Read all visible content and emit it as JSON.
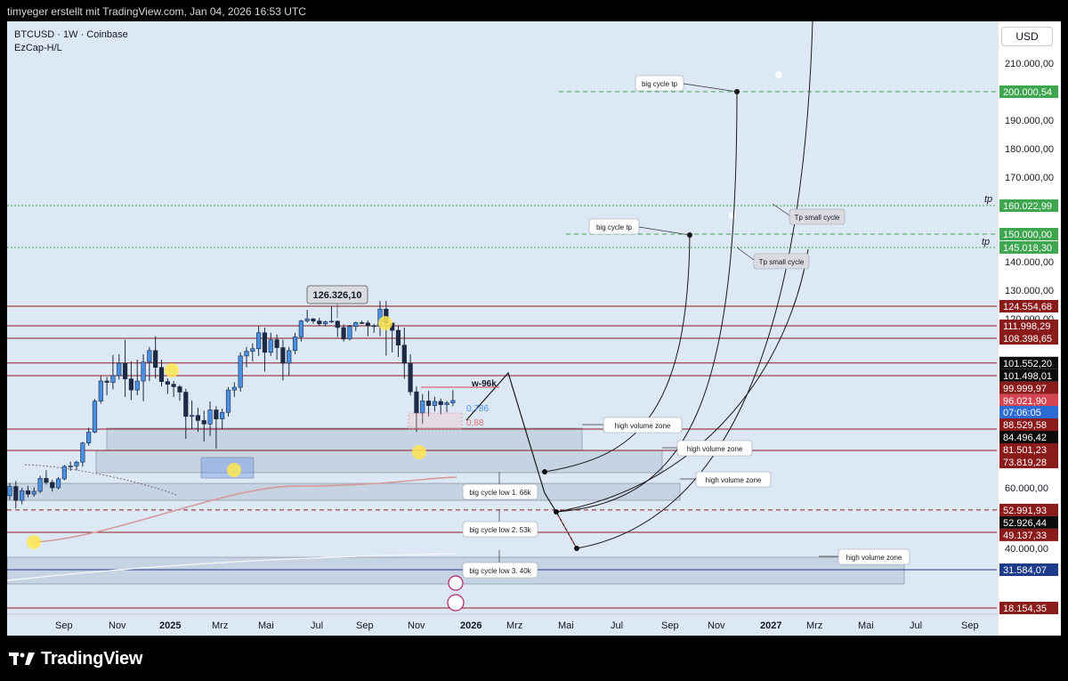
{
  "header": {
    "attribution": "timyeger erstellt mit TradingView.com, Jan 04, 2026 16:53 UTC"
  },
  "legend": {
    "symbol": "BTCUSD · 1W · Coinbase",
    "indicator": "EzCap-H/L"
  },
  "currency_button": "USD",
  "footer": {
    "brand": "TradingView"
  },
  "colors": {
    "chart_bg": "#dde8f5",
    "up": "#4a90e2",
    "down": "#1c2a44",
    "dark_red": "#8b1a1a",
    "red": "#d64552",
    "green": "#3ea64e",
    "black": "#0b0b0b",
    "blue": "#2b6cd6",
    "navy": "#1e3a8a"
  },
  "chart_data": {
    "type": "candlestick",
    "symbol": "BTCUSD",
    "interval": "1W",
    "exchange": "Coinbase",
    "ylim": [
      15000,
      218000
    ],
    "x_axis_labels": [
      "Sep",
      "Nov",
      "2025",
      "Mrz",
      "Mai",
      "Jul",
      "Sep",
      "Nov",
      "2026",
      "Mrz",
      "Mai",
      "Jul",
      "Sep",
      "Nov",
      "2027",
      "Mrz",
      "Mai",
      "Jul",
      "Sep"
    ],
    "y_axis_ticks": [
      "210.000,00",
      "200.000,00",
      "190.000,00",
      "180.000,00",
      "170.000,00",
      "160.000,00",
      "150.000,00",
      "140.000,00",
      "130.000,00",
      "120.000,00",
      "60.000,00",
      "40.000,00"
    ],
    "price_labels": [
      {
        "value": 200000.54,
        "label": "200.000,54",
        "color": "green"
      },
      {
        "value": 160022.99,
        "label": "160.022,99",
        "color": "green"
      },
      {
        "value": 150000.0,
        "label": "150.000,00",
        "color": "green"
      },
      {
        "value": 145018.3,
        "label": "145.018,30",
        "color": "green"
      },
      {
        "value": 124554.68,
        "label": "124.554,68",
        "color": "dark_red"
      },
      {
        "value": 111998.29,
        "label": "111.998,29",
        "color": "dark_red"
      },
      {
        "value": 108398.65,
        "label": "108.398,65",
        "color": "dark_red"
      },
      {
        "value": 101552.2,
        "label": "101.552,20",
        "color": "black"
      },
      {
        "value": 101498.01,
        "label": "101.498,01",
        "color": "black"
      },
      {
        "value": 99999.97,
        "label": "99.999,97",
        "color": "dark_red"
      },
      {
        "value": 96021.9,
        "label": "96.021,90",
        "color": "red"
      },
      {
        "value": 91287.88,
        "label": "91.287,88",
        "color": "blue"
      },
      {
        "value": 91287.88,
        "label": "07:06:05",
        "color": "blue"
      },
      {
        "value": 88529.58,
        "label": "88.529,58",
        "color": "dark_red"
      },
      {
        "value": 84496.42,
        "label": "84.496,42",
        "color": "black"
      },
      {
        "value": 81501.23,
        "label": "81.501,23",
        "color": "dark_red"
      },
      {
        "value": 73819.28,
        "label": "73.819,28",
        "color": "dark_red"
      },
      {
        "value": 52991.93,
        "label": "52.991,93",
        "color": "dark_red"
      },
      {
        "value": 52926.44,
        "label": "52.926,44",
        "color": "black"
      },
      {
        "value": 49137.33,
        "label": "49.137,33",
        "color": "dark_red"
      },
      {
        "value": 31584.07,
        "label": "31.584,07",
        "color": "navy"
      },
      {
        "value": 18154.35,
        "label": "18.154,35",
        "color": "dark_red"
      }
    ],
    "horizontal_lines": [
      124554.68,
      111998.29,
      108398.65,
      101552.2,
      99999.97,
      81501.23,
      73819.28,
      49137.33,
      31584.07,
      18154.35
    ],
    "dashed_lines": [
      200000.54,
      160022.99,
      150000.0,
      145018.3,
      52991.93
    ],
    "candles": [
      [
        57500,
        61800,
        56200,
        60500
      ],
      [
        60500,
        62500,
        53500,
        56000
      ],
      [
        56000,
        60000,
        54800,
        59100
      ],
      [
        59100,
        60700,
        57000,
        58000
      ],
      [
        58000,
        60200,
        57200,
        58900
      ],
      [
        58900,
        64500,
        58300,
        63500
      ],
      [
        63500,
        66500,
        61200,
        62000
      ],
      [
        62000,
        63000,
        58800,
        60000
      ],
      [
        60000,
        64000,
        59500,
        63300
      ],
      [
        63300,
        68500,
        62800,
        67900
      ],
      [
        67900,
        69700,
        66300,
        68100
      ],
      [
        68100,
        70000,
        66500,
        69500
      ],
      [
        69500,
        76900,
        67800,
        76500
      ],
      [
        76500,
        81800,
        75500,
        80400
      ],
      [
        80400,
        91800,
        80000,
        89800
      ],
      [
        89800,
        99800,
        87800,
        98000
      ],
      [
        98000,
        99500,
        93000,
        97500
      ],
      [
        97500,
        103800,
        95000,
        100000
      ],
      [
        100000,
        104000,
        98500,
        101500
      ],
      [
        101500,
        108000,
        92500,
        98800
      ],
      [
        98800,
        102000,
        91500,
        94800
      ],
      [
        94800,
        102500,
        93000,
        98000
      ],
      [
        98000,
        104000,
        89500,
        101800
      ],
      [
        101800,
        106000,
        98000,
        105000
      ],
      [
        105000,
        109000,
        99000,
        101000
      ],
      [
        101000,
        102500,
        96000,
        97800
      ],
      [
        97800,
        99000,
        93500,
        96800
      ],
      [
        96800,
        98000,
        92500,
        95900
      ],
      [
        95900,
        96500,
        91000,
        94100
      ],
      [
        94100,
        95200,
        78000,
        84000
      ],
      [
        84000,
        91300,
        81500,
        84200
      ],
      [
        84200,
        86500,
        80500,
        83200
      ],
      [
        83200,
        85500,
        77000,
        82500
      ],
      [
        82500,
        88800,
        79000,
        85800
      ],
      [
        85800,
        87000,
        74500,
        83500
      ],
      [
        83500,
        86200,
        81500,
        85000
      ],
      [
        85000,
        95800,
        84000,
        94800
      ],
      [
        94800,
        97500,
        92500,
        95700
      ],
      [
        95700,
        104500,
        94200,
        103500
      ],
      [
        103500,
        106000,
        101000,
        104800
      ],
      [
        104800,
        107000,
        102000,
        105500
      ],
      [
        105500,
        111900,
        103500,
        110000
      ],
      [
        110000,
        111500,
        100500,
        104500
      ],
      [
        104500,
        110000,
        103500,
        108000
      ],
      [
        108000,
        109500,
        102500,
        105800
      ],
      [
        105800,
        108000,
        98200,
        101500
      ],
      [
        101500,
        106000,
        99800,
        105000
      ],
      [
        105000,
        110000,
        104000,
        108800
      ],
      [
        108800,
        118800,
        107500,
        117500
      ],
      [
        117500,
        123200,
        115500,
        119800
      ],
      [
        119800,
        120200,
        114500,
        117400
      ],
      [
        117400,
        120300,
        112000,
        114200
      ],
      [
        114200,
        117900,
        111800,
        116500
      ],
      [
        116500,
        124500,
        115000,
        117200
      ],
      [
        117200,
        118000,
        108800,
        111500
      ],
      [
        111500,
        113500,
        107500,
        108200
      ],
      [
        108200,
        113000,
        107800,
        111800
      ],
      [
        111800,
        116800,
        110500,
        115600
      ],
      [
        115600,
        117800,
        114000,
        115200
      ],
      [
        115200,
        117900,
        109000,
        112200
      ],
      [
        112200,
        114200,
        110000,
        111800
      ],
      [
        111800,
        126300,
        109000,
        123500
      ],
      [
        123500,
        126300,
        103600,
        115100
      ],
      [
        115100,
        116000,
        104500,
        110700
      ],
      [
        110700,
        112300,
        103200,
        106500
      ],
      [
        106500,
        111500,
        98900,
        101500
      ],
      [
        101500,
        104000,
        93000,
        94200
      ],
      [
        94200,
        96000,
        80500,
        84800
      ],
      [
        84800,
        93500,
        82500,
        90200
      ],
      [
        90200,
        94500,
        84000,
        87200
      ],
      [
        87200,
        92600,
        85300,
        88600
      ],
      [
        88600,
        92000,
        84400,
        87500
      ],
      [
        87500,
        90500,
        85100,
        88100
      ],
      [
        88100,
        94800,
        87000,
        91300
      ]
    ],
    "annotations": [
      {
        "type": "price-box",
        "text": "126.326,10"
      },
      {
        "type": "label",
        "text": "w-96k"
      },
      {
        "type": "fib",
        "text": "0,786"
      },
      {
        "type": "fib",
        "text": "0,88"
      },
      {
        "type": "callout",
        "text": "high volume zone"
      },
      {
        "type": "callout",
        "text": "high volume zone"
      },
      {
        "type": "callout",
        "text": "high volume zone"
      },
      {
        "type": "callout",
        "text": "high volume zone"
      },
      {
        "type": "callout",
        "text": "big cycle low 1. 66k"
      },
      {
        "type": "callout",
        "text": "big cycle low 2. 53k"
      },
      {
        "type": "callout",
        "text": "big cycle low 3. 40k"
      },
      {
        "type": "callout",
        "text": "big cycle tp"
      },
      {
        "type": "callout",
        "text": "big cycle tp"
      },
      {
        "type": "callout",
        "text": "Tp small cycle"
      },
      {
        "type": "callout",
        "text": "Tp small cycle"
      },
      {
        "type": "label",
        "text": "tp"
      },
      {
        "type": "label",
        "text": "tp"
      }
    ]
  }
}
